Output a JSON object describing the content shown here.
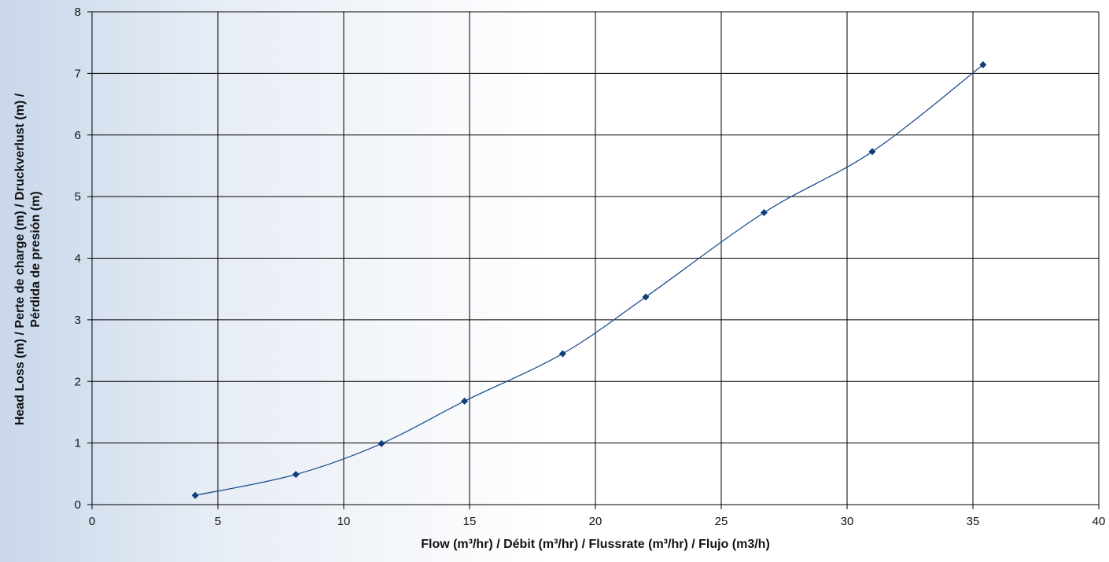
{
  "chart_data": {
    "type": "line",
    "title": "",
    "xlabel": "Flow (m³/hr) / Débit (m³/hr) / Flussrate (m³/hr) / Flujo (m3/h)",
    "ylabel_lines": [
      "Head Loss (m) / Perte de charge (m) / Druckverlust (m) /",
      "Pérdida de presión (m)"
    ],
    "xlim": [
      0,
      40
    ],
    "ylim": [
      0,
      8
    ],
    "x_ticks": [
      0,
      5,
      10,
      15,
      20,
      25,
      30,
      35,
      40
    ],
    "y_ticks": [
      0,
      1,
      2,
      3,
      4,
      5,
      6,
      7,
      8
    ],
    "grid": true,
    "legend": "none",
    "series": [
      {
        "color": "#1f4e8c",
        "marker": "diamond",
        "x": [
          4.1,
          8.1,
          11.5,
          14.8,
          18.7,
          22.0,
          26.7,
          31.0,
          35.4
        ],
        "y": [
          0.15,
          0.49,
          0.99,
          1.68,
          2.45,
          3.37,
          4.74,
          5.73,
          7.14
        ]
      }
    ]
  }
}
